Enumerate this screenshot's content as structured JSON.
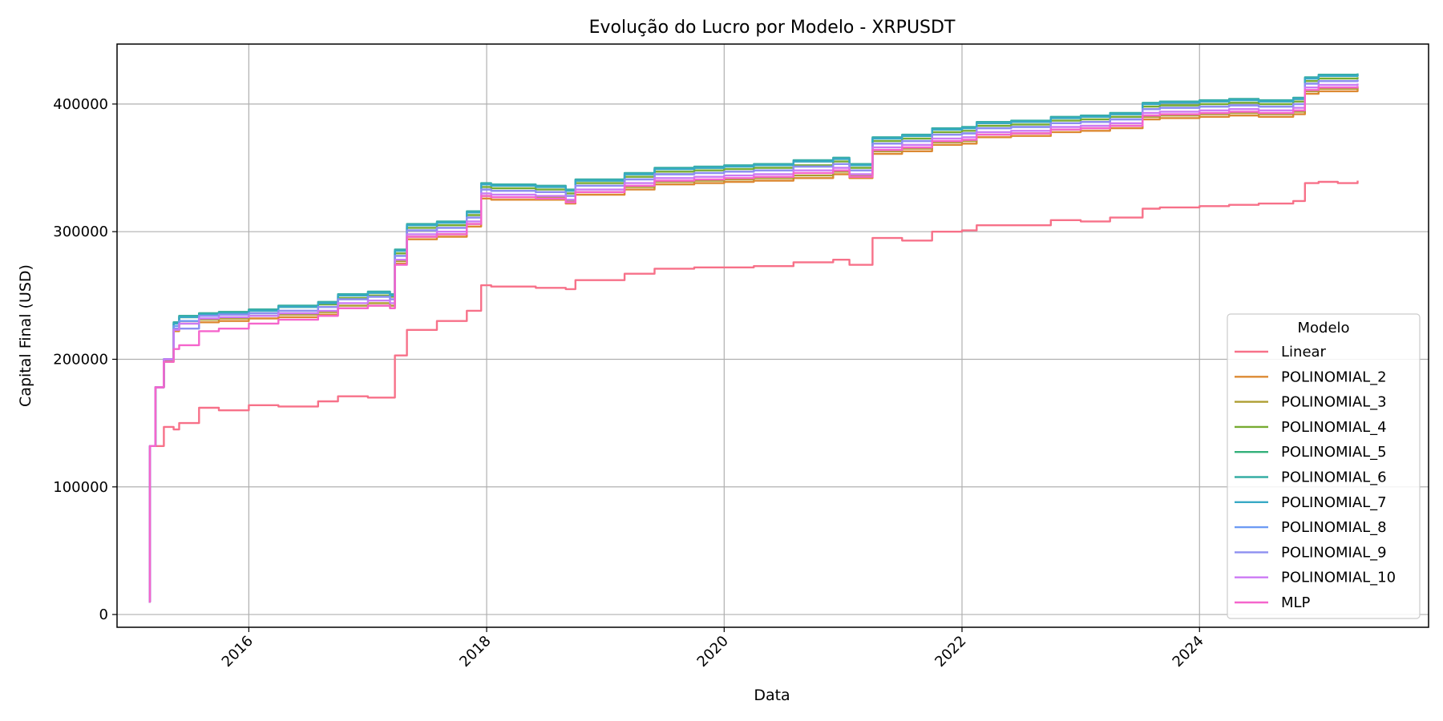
{
  "chart_data": {
    "type": "line",
    "title": "Evolução do Lucro por Modelo - XRPUSDT",
    "xlabel": "Data",
    "ylabel": "Capital Final (USD)",
    "x_tick_labels": [
      "2016",
      "2018",
      "2020",
      "2022",
      "2024"
    ],
    "y_tick_labels": [
      "0",
      "100000",
      "200000",
      "300000",
      "400000"
    ],
    "xlim": [
      "2014-11-22",
      "2025-12-05"
    ],
    "ylim": [
      -10000,
      447000
    ],
    "grid": true,
    "legend_title": "Modelo",
    "legend_position": "lower-right",
    "x": [
      "2015-02-28",
      "2015-03-03",
      "2015-03-20",
      "2015-03-25",
      "2015-04-15",
      "2015-05-15",
      "2015-06-01",
      "2015-08-01",
      "2015-10-01",
      "2016-01-01",
      "2016-04-01",
      "2016-08-01",
      "2016-10-01",
      "2017-01-01",
      "2017-03-10",
      "2017-03-25",
      "2017-05-01",
      "2017-08-01",
      "2017-11-01",
      "2017-12-15",
      "2018-01-15",
      "2018-06-01",
      "2018-09-01",
      "2018-10-01",
      "2019-03-01",
      "2019-06-01",
      "2019-10-01",
      "2020-01-01",
      "2020-04-01",
      "2020-08-01",
      "2020-12-01",
      "2021-01-20",
      "2021-04-01",
      "2021-07-01",
      "2021-10-01",
      "2022-01-01",
      "2022-02-15",
      "2022-06-01",
      "2022-10-01",
      "2023-01-01",
      "2023-04-01",
      "2023-07-10",
      "2023-09-01",
      "2024-01-01",
      "2024-04-01",
      "2024-07-01",
      "2024-10-15",
      "2024-11-20",
      "2025-01-01",
      "2025-03-01",
      "2025-05-01"
    ],
    "series": [
      {
        "name": "Linear",
        "color": "#f77189",
        "values": [
          10000,
          132000,
          132000,
          132000,
          147000,
          145000,
          150000,
          162000,
          160000,
          164000,
          163000,
          167000,
          171000,
          170000,
          170000,
          203000,
          223000,
          230000,
          238000,
          258000,
          257000,
          256000,
          255000,
          262000,
          267000,
          271000,
          272000,
          272000,
          273000,
          276000,
          278000,
          274000,
          295000,
          293000,
          300000,
          301000,
          305000,
          305000,
          309000,
          308000,
          311000,
          318000,
          319000,
          320000,
          321000,
          322000,
          324000,
          338000,
          339000,
          338000,
          340000
        ]
      },
      {
        "name": "POLINOMIAL_2",
        "color": "#dc8932",
        "values": [
          10000,
          132000,
          178000,
          178000,
          198000,
          222000,
          228000,
          229000,
          230000,
          232000,
          233000,
          235000,
          240000,
          242000,
          240000,
          275000,
          294000,
          296000,
          304000,
          326000,
          325000,
          325000,
          322000,
          329000,
          333000,
          337000,
          338000,
          339000,
          340000,
          342000,
          345000,
          342000,
          361000,
          363000,
          368000,
          369000,
          374000,
          375000,
          378000,
          379000,
          381000,
          388000,
          389000,
          390000,
          391000,
          390000,
          392000,
          408000,
          410000,
          410000,
          412000
        ]
      },
      {
        "name": "POLINOMIAL_3",
        "color": "#ae9d31",
        "values": [
          10000,
          132000,
          178000,
          178000,
          199000,
          223000,
          230000,
          231000,
          232000,
          234000,
          235000,
          237000,
          242000,
          244000,
          242000,
          277000,
          296000,
          298000,
          306000,
          328000,
          327000,
          327000,
          324000,
          331000,
          335000,
          339000,
          340000,
          341000,
          342000,
          344000,
          347000,
          344000,
          363000,
          365000,
          370000,
          371000,
          376000,
          377000,
          380000,
          381000,
          383000,
          390000,
          391000,
          392000,
          393000,
          392000,
          394000,
          410000,
          412000,
          412000,
          414000
        ]
      },
      {
        "name": "POLINOMIAL_4",
        "color": "#77ab31",
        "values": [
          10000,
          132000,
          178000,
          178000,
          200000,
          228000,
          233000,
          236000,
          237000,
          238000,
          241000,
          243000,
          248000,
          250000,
          249000,
          283000,
          303000,
          305000,
          313000,
          335000,
          334000,
          333000,
          330000,
          338000,
          343000,
          347000,
          348000,
          349000,
          350000,
          352000,
          355000,
          350000,
          371000,
          373000,
          378000,
          379000,
          383000,
          384000,
          387000,
          388000,
          390000,
          398000,
          399000,
          400000,
          401000,
          400000,
          402000,
          418000,
          420000,
          420000,
          421000
        ]
      },
      {
        "name": "POLINOMIAL_5",
        "color": "#33b07a",
        "values": [
          10000,
          132000,
          178000,
          178000,
          200000,
          229000,
          234000,
          236000,
          237000,
          239000,
          242000,
          244000,
          250000,
          252000,
          250000,
          285000,
          305000,
          307000,
          315000,
          337000,
          336000,
          335000,
          332000,
          340000,
          345000,
          349000,
          350000,
          351000,
          352000,
          355000,
          357000,
          352000,
          373000,
          375000,
          380000,
          381000,
          385000,
          386000,
          389000,
          390000,
          392000,
          400000,
          401000,
          402000,
          403000,
          402000,
          404000,
          420000,
          422000,
          422000,
          423000
        ]
      },
      {
        "name": "POLINOMIAL_6",
        "color": "#36ada4",
        "values": [
          10000,
          132000,
          178000,
          178000,
          200000,
          229000,
          234000,
          236000,
          237000,
          239000,
          242000,
          245000,
          251000,
          253000,
          251000,
          286000,
          306000,
          308000,
          316000,
          338000,
          337000,
          336000,
          333000,
          341000,
          346000,
          350000,
          351000,
          352000,
          353000,
          356000,
          358000,
          353000,
          374000,
          376000,
          381000,
          382000,
          386000,
          387000,
          390000,
          391000,
          393000,
          401000,
          402000,
          403000,
          404000,
          403000,
          405000,
          421000,
          423000,
          423000,
          424000
        ]
      },
      {
        "name": "POLINOMIAL_7",
        "color": "#38a9c5",
        "values": [
          10000,
          132000,
          178000,
          178000,
          200000,
          228000,
          233000,
          235000,
          236000,
          238000,
          241000,
          244000,
          250000,
          252000,
          250000,
          285000,
          305000,
          307000,
          315000,
          337000,
          336000,
          335000,
          332000,
          340000,
          345000,
          349000,
          350000,
          351000,
          352000,
          355000,
          357000,
          352000,
          373000,
          375000,
          380000,
          381000,
          385000,
          386000,
          389000,
          390000,
          392000,
          400000,
          401000,
          402000,
          403000,
          402000,
          404000,
          420000,
          422000,
          422000,
          423000
        ]
      },
      {
        "name": "POLINOMIAL_8",
        "color": "#6e9bf4",
        "values": [
          10000,
          132000,
          178000,
          178000,
          200000,
          226000,
          230000,
          234000,
          235000,
          236000,
          238000,
          241000,
          247000,
          249000,
          247000,
          281000,
          301000,
          303000,
          311000,
          333000,
          332000,
          331000,
          328000,
          336000,
          341000,
          345000,
          346000,
          347000,
          348000,
          351000,
          353000,
          348000,
          369000,
          371000,
          376000,
          377000,
          381000,
          382000,
          385000,
          386000,
          388000,
          396000,
          397000,
          398000,
          399000,
          398000,
          400000,
          416000,
          418000,
          418000,
          419000
        ]
      },
      {
        "name": "POLINOMIAL_9",
        "color": "#8d8ff0",
        "values": [
          10000,
          132000,
          178000,
          178000,
          200000,
          224000,
          224000,
          234000,
          235000,
          236000,
          238000,
          241000,
          247000,
          249000,
          247000,
          281000,
          301000,
          303000,
          311000,
          333000,
          332000,
          331000,
          328000,
          336000,
          341000,
          345000,
          346000,
          347000,
          348000,
          351000,
          353000,
          348000,
          369000,
          371000,
          376000,
          377000,
          381000,
          382000,
          385000,
          386000,
          388000,
          396000,
          397000,
          398000,
          399000,
          398000,
          400000,
          416000,
          418000,
          418000,
          419000
        ]
      },
      {
        "name": "POLINOMIAL_10",
        "color": "#cc7af4",
        "values": [
          10000,
          132000,
          178000,
          178000,
          200000,
          223000,
          228000,
          232000,
          233000,
          234000,
          236000,
          238000,
          244000,
          246000,
          244000,
          278000,
          298000,
          300000,
          308000,
          330000,
          329000,
          328000,
          325000,
          333000,
          338000,
          342000,
          343000,
          344000,
          345000,
          348000,
          350000,
          345000,
          366000,
          368000,
          373000,
          374000,
          378000,
          379000,
          382000,
          383000,
          385000,
          393000,
          394000,
          395000,
          396000,
          395000,
          397000,
          413000,
          415000,
          415000,
          416000
        ]
      },
      {
        "name": "MLP",
        "color": "#f565cc",
        "values": [
          10000,
          132000,
          178000,
          178000,
          198000,
          208000,
          211000,
          222000,
          224000,
          228000,
          231000,
          234000,
          240000,
          242000,
          240000,
          274000,
          296000,
          298000,
          306000,
          328000,
          327000,
          326000,
          323000,
          331000,
          336000,
          340000,
          341000,
          342000,
          343000,
          346000,
          348000,
          343000,
          364000,
          366000,
          371000,
          372000,
          376000,
          377000,
          380000,
          381000,
          383000,
          391000,
          392000,
          393000,
          394000,
          393000,
          395000,
          411000,
          413000,
          413000,
          414000
        ]
      }
    ]
  }
}
